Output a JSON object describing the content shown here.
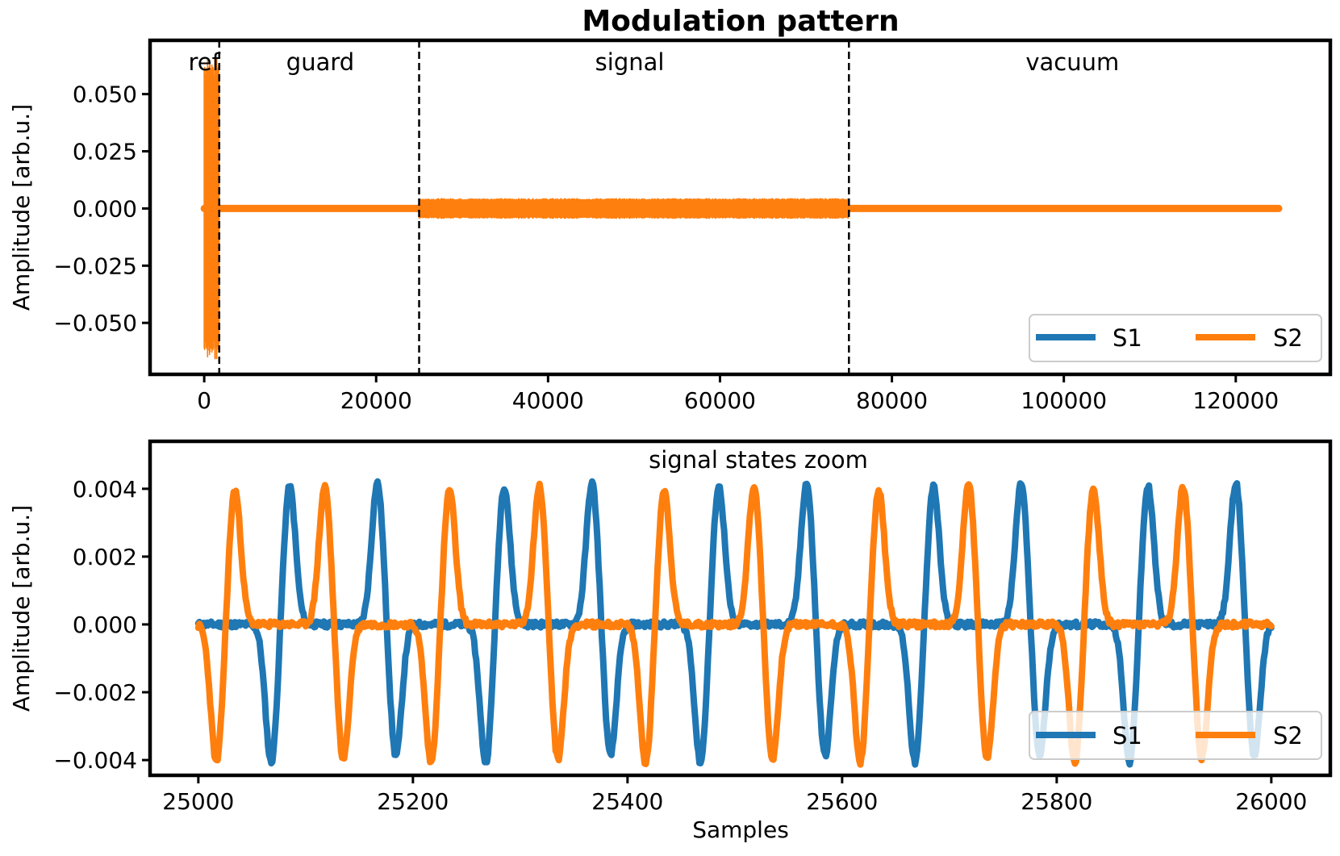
{
  "title": "Modulation pattern",
  "colors": {
    "s1": "#1f77b4",
    "s2": "#ff7f0e",
    "axis": "#000000",
    "legend_border": "#cccccc"
  },
  "chart_data": [
    {
      "type": "line",
      "title": "Modulation pattern",
      "xlabel": "",
      "ylabel": "Amplitude [arb.u.]",
      "xlim": [
        -6300,
        131000
      ],
      "ylim": [
        -0.0725,
        0.0735
      ],
      "xticks": [
        0,
        20000,
        40000,
        60000,
        80000,
        100000,
        120000
      ],
      "xtick_labels": [
        "0",
        "20000",
        "40000",
        "60000",
        "80000",
        "100000",
        "120000"
      ],
      "yticks": [
        0.05,
        0.025,
        0.0,
        -0.025,
        -0.05
      ],
      "ytick_labels": [
        "0.050",
        "0.025",
        "0.000",
        "−0.025",
        "−0.050"
      ],
      "region_boundaries": [
        1750,
        25000,
        75000
      ],
      "region_labels": [
        {
          "text": "ref",
          "x": 0
        },
        {
          "text": "guard",
          "x": 13500
        },
        {
          "text": "signal",
          "x": 49500
        },
        {
          "text": "vacuum",
          "x": 101000
        }
      ],
      "series": [
        {
          "name": "S1",
          "visible_in_plot": false
        },
        {
          "name": "S2",
          "segments": [
            {
              "label": "ref",
              "x_start": 0,
              "x_end": 1750,
              "amplitude": 0.066
            },
            {
              "label": "guard",
              "x_start": 1750,
              "x_end": 25000,
              "amplitude": 0.0008
            },
            {
              "label": "signal",
              "x_start": 25000,
              "x_end": 75000,
              "amplitude": 0.0043
            },
            {
              "label": "vacuum",
              "x_start": 75000,
              "x_end": 125000,
              "amplitude": 0.0008
            }
          ]
        }
      ],
      "legend": {
        "entries": [
          "S1",
          "S2"
        ],
        "placement": "lower right",
        "ncol": 2
      }
    },
    {
      "type": "line",
      "title": "signal states zoom",
      "xlabel": "Samples",
      "ylabel": "Amplitude [arb.u.]",
      "xlim": [
        24955,
        26055
      ],
      "ylim": [
        -0.00445,
        0.0054
      ],
      "xticks": [
        25000,
        25200,
        25400,
        25600,
        25800,
        26000
      ],
      "xtick_labels": [
        "25000",
        "25200",
        "25400",
        "25600",
        "25800",
        "26000"
      ],
      "yticks": [
        0.004,
        0.002,
        0.0,
        -0.002,
        -0.004
      ],
      "ytick_labels": [
        "0.004",
        "0.002",
        "0.000",
        "−0.002",
        "−0.004"
      ],
      "pulse_width_samples": 5.5,
      "series": [
        {
          "name": "S1",
          "pulses": [
            [
              25068,
              -0.0041
            ],
            [
              25085,
              0.0041
            ],
            [
              25167,
              0.0042
            ],
            [
              25184,
              -0.0039
            ],
            [
              25268,
              -0.0041
            ],
            [
              25285,
              0.0041
            ],
            [
              25367,
              0.0042
            ],
            [
              25384,
              -0.0039
            ],
            [
              25468,
              -0.0041
            ],
            [
              25485,
              0.0041
            ],
            [
              25567,
              0.0042
            ],
            [
              25584,
              -0.0039
            ],
            [
              25668,
              -0.0041
            ],
            [
              25685,
              0.0041
            ],
            [
              25767,
              0.0042
            ],
            [
              25784,
              -0.0039
            ],
            [
              25868,
              -0.0041
            ],
            [
              25885,
              0.0041
            ],
            [
              25967,
              0.0042
            ],
            [
              25984,
              -0.0039
            ]
          ]
        },
        {
          "name": "S2",
          "pulses": [
            [
              25017,
              -0.0041
            ],
            [
              25034,
              0.004
            ],
            [
              25118,
              0.0041
            ],
            [
              25135,
              -0.004
            ],
            [
              25217,
              -0.0041
            ],
            [
              25234,
              0.004
            ],
            [
              25318,
              0.0041
            ],
            [
              25335,
              -0.004
            ],
            [
              25417,
              -0.0041
            ],
            [
              25434,
              0.004
            ],
            [
              25518,
              0.0041
            ],
            [
              25535,
              -0.004
            ],
            [
              25617,
              -0.0041
            ],
            [
              25634,
              0.004
            ],
            [
              25718,
              0.0042
            ],
            [
              25735,
              -0.004
            ],
            [
              25817,
              -0.0041
            ],
            [
              25834,
              0.004
            ],
            [
              25918,
              0.0041
            ],
            [
              25935,
              -0.004
            ]
          ]
        }
      ],
      "legend": {
        "entries": [
          "S1",
          "S2"
        ],
        "placement": "lower right",
        "ncol": 2
      }
    }
  ]
}
